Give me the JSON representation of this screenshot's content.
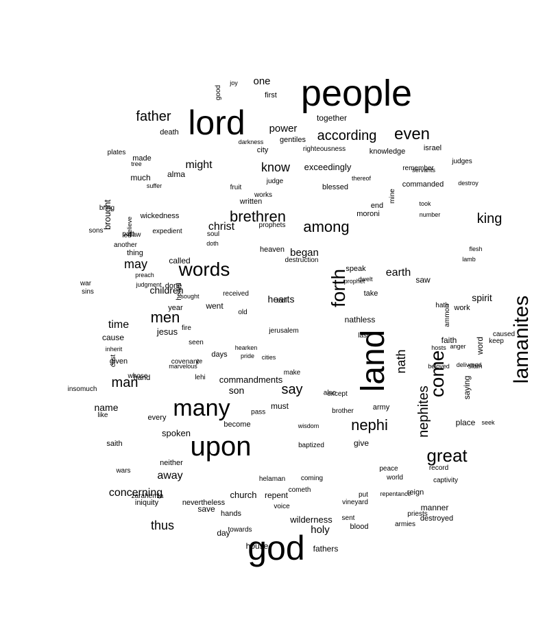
{
  "word_cloud": {
    "text_color": "#000000",
    "background_color": "#ffffff",
    "words": [
      {
        "text": "people",
        "size": 54
      },
      {
        "text": "lord",
        "size": 50
      },
      {
        "text": "god",
        "size": 50
      },
      {
        "text": "land",
        "size": 48
      },
      {
        "text": "upon",
        "size": 40
      },
      {
        "text": "many",
        "size": 34
      },
      {
        "text": "lamanites",
        "size": 30
      },
      {
        "text": "come",
        "size": 28
      },
      {
        "text": "forth",
        "size": 28
      },
      {
        "text": "words",
        "size": 28
      },
      {
        "text": "great",
        "size": 26
      },
      {
        "text": "even",
        "size": 24
      },
      {
        "text": "brethren",
        "size": 22
      },
      {
        "text": "among",
        "size": 22
      },
      {
        "text": "nephi",
        "size": 22
      },
      {
        "text": "men",
        "size": 22
      },
      {
        "text": "nephites",
        "size": 20
      },
      {
        "text": "man",
        "size": 20
      },
      {
        "text": "father",
        "size": 20
      },
      {
        "text": "according",
        "size": 20
      },
      {
        "text": "king",
        "size": 20
      },
      {
        "text": "say",
        "size": 20
      },
      {
        "text": "nath",
        "size": 18
      },
      {
        "text": "may",
        "size": 18
      },
      {
        "text": "thus",
        "size": 18
      },
      {
        "text": "know",
        "size": 18
      },
      {
        "text": "might",
        "size": 16
      },
      {
        "text": "away",
        "size": 16
      },
      {
        "text": "concerning",
        "size": 16
      },
      {
        "text": "christ",
        "size": 16
      },
      {
        "text": "earth",
        "size": 16
      },
      {
        "text": "time",
        "size": 16
      },
      {
        "text": "power",
        "size": 15
      },
      {
        "text": "one",
        "size": 15
      },
      {
        "text": "holy",
        "size": 15
      },
      {
        "text": "began",
        "size": 15
      },
      {
        "text": "spirit",
        "size": 14
      },
      {
        "text": "children",
        "size": 14
      },
      {
        "text": "son",
        "size": 14
      },
      {
        "text": "name",
        "size": 14
      },
      {
        "text": "hearts",
        "size": 14
      },
      {
        "text": "jesus",
        "size": 13
      },
      {
        "text": "spoken",
        "size": 13
      },
      {
        "text": "church",
        "size": 13
      },
      {
        "text": "wilderness",
        "size": 13
      },
      {
        "text": "brought",
        "size": 13
      },
      {
        "text": "exceedingly",
        "size": 13
      },
      {
        "text": "commandments",
        "size": 13
      },
      {
        "text": "saying",
        "size": 12
      },
      {
        "text": "word",
        "size": 12
      },
      {
        "text": "called",
        "size": 12
      },
      {
        "text": "must",
        "size": 12
      },
      {
        "text": "nathless",
        "size": 12
      },
      {
        "text": "place",
        "size": 12
      },
      {
        "text": "together",
        "size": 12
      },
      {
        "text": "faith",
        "size": 12
      },
      {
        "text": "alma",
        "size": 12
      },
      {
        "text": "much",
        "size": 12
      },
      {
        "text": "repent",
        "size": 12
      },
      {
        "text": "save",
        "size": 12
      },
      {
        "text": "give",
        "size": 12
      },
      {
        "text": "fathers",
        "size": 12
      },
      {
        "text": "cause",
        "size": 12
      },
      {
        "text": "day",
        "size": 12
      },
      {
        "text": "house",
        "size": 12
      },
      {
        "text": "manner",
        "size": 12
      },
      {
        "text": "saw",
        "size": 12
      },
      {
        "text": "went",
        "size": 12
      },
      {
        "text": "army",
        "size": 11
      },
      {
        "text": "death",
        "size": 11
      },
      {
        "text": "hands",
        "size": 11
      },
      {
        "text": "city",
        "size": 11
      },
      {
        "text": "work",
        "size": 11
      },
      {
        "text": "made",
        "size": 11
      },
      {
        "text": "saith",
        "size": 11
      },
      {
        "text": "knowledge",
        "size": 11
      },
      {
        "text": "israel",
        "size": 11
      },
      {
        "text": "moroni",
        "size": 11
      },
      {
        "text": "written",
        "size": 11
      },
      {
        "text": "take",
        "size": 11
      },
      {
        "text": "speak",
        "size": 11
      },
      {
        "text": "given",
        "size": 11
      },
      {
        "text": "become",
        "size": 11
      },
      {
        "text": "first",
        "size": 11
      },
      {
        "text": "blessed",
        "size": 11
      },
      {
        "text": "commanded",
        "size": 11
      },
      {
        "text": "year",
        "size": 11
      },
      {
        "text": "heaven",
        "size": 11
      },
      {
        "text": "wickedness",
        "size": 11
      },
      {
        "text": "every",
        "size": 11
      },
      {
        "text": "neither",
        "size": 11
      },
      {
        "text": "done",
        "size": 11
      },
      {
        "text": "gentiles",
        "size": 11
      },
      {
        "text": "end",
        "size": 11
      },
      {
        "text": "hand",
        "size": 11
      },
      {
        "text": "nevertheless",
        "size": 11
      },
      {
        "text": "blood",
        "size": 11
      },
      {
        "text": "destroyed",
        "size": 11
      },
      {
        "text": "reign",
        "size": 11
      },
      {
        "text": "iniquity",
        "size": 11
      },
      {
        "text": "days",
        "size": 11
      },
      {
        "text": "thing",
        "size": 11
      },
      {
        "text": "vineyard",
        "size": 10
      },
      {
        "text": "voice",
        "size": 10
      },
      {
        "text": "armies",
        "size": 10
      },
      {
        "text": "priests",
        "size": 10
      },
      {
        "text": "prophets",
        "size": 10
      },
      {
        "text": "destruction",
        "size": 10
      },
      {
        "text": "received",
        "size": 10
      },
      {
        "text": "record",
        "size": 10
      },
      {
        "text": "plates",
        "size": 10
      },
      {
        "text": "ammon",
        "size": 10
      },
      {
        "text": "law",
        "size": 10
      },
      {
        "text": "evil",
        "size": 10
      },
      {
        "text": "sons",
        "size": 10
      },
      {
        "text": "part",
        "size": 10
      },
      {
        "text": "works",
        "size": 10
      },
      {
        "text": "judge",
        "size": 10
      },
      {
        "text": "keep",
        "size": 10
      },
      {
        "text": "caused",
        "size": 10
      },
      {
        "text": "judges",
        "size": 10
      },
      {
        "text": "captivity",
        "size": 10
      },
      {
        "text": "good",
        "size": 10
      },
      {
        "text": "peace",
        "size": 10
      },
      {
        "text": "slain",
        "size": 10
      },
      {
        "text": "soul",
        "size": 10
      },
      {
        "text": "sent",
        "size": 10
      },
      {
        "text": "remember",
        "size": 10
      },
      {
        "text": "expedient",
        "size": 10
      },
      {
        "text": "another",
        "size": 10
      },
      {
        "text": "whose",
        "size": 10
      },
      {
        "text": "zarahemla",
        "size": 10
      },
      {
        "text": "wars",
        "size": 10
      },
      {
        "text": "helaman",
        "size": 10
      },
      {
        "text": "coming",
        "size": 10
      },
      {
        "text": "led",
        "size": 10
      },
      {
        "text": "make",
        "size": 10
      },
      {
        "text": "lehi",
        "size": 10
      },
      {
        "text": "fire",
        "size": 10
      },
      {
        "text": "seen",
        "size": 10
      },
      {
        "text": "mine",
        "size": 10
      },
      {
        "text": "except",
        "size": 10
      },
      {
        "text": "last",
        "size": 10
      },
      {
        "text": "cast",
        "size": 10
      },
      {
        "text": "righteousness",
        "size": 10
      },
      {
        "text": "towards",
        "size": 10
      },
      {
        "text": "jerusalem",
        "size": 10
      },
      {
        "text": "covenant",
        "size": 10
      },
      {
        "text": "insomuch",
        "size": 10
      },
      {
        "text": "like",
        "size": 10
      },
      {
        "text": "also",
        "size": 10
      },
      {
        "text": "heard",
        "size": 10
      },
      {
        "text": "fruit",
        "size": 10
      },
      {
        "text": "hath",
        "size": 10
      },
      {
        "text": "bring",
        "size": 10
      },
      {
        "text": "sins",
        "size": 10
      },
      {
        "text": "war",
        "size": 10
      },
      {
        "text": "world",
        "size": 10
      },
      {
        "text": "old",
        "size": 10
      },
      {
        "text": "cometh",
        "size": 10
      },
      {
        "text": "pass",
        "size": 10
      },
      {
        "text": "baptized",
        "size": 10
      },
      {
        "text": "brother",
        "size": 10
      },
      {
        "text": "put",
        "size": 10
      },
      {
        "text": "ye",
        "size": 9
      },
      {
        "text": "believe",
        "size": 9
      },
      {
        "text": "doth",
        "size": 9
      },
      {
        "text": "took",
        "size": 9
      },
      {
        "text": "thereof",
        "size": 9
      },
      {
        "text": "servants",
        "size": 9
      },
      {
        "text": "tree",
        "size": 9
      },
      {
        "text": "judgment",
        "size": 9
      },
      {
        "text": "hearken",
        "size": 9
      },
      {
        "text": "marvelous",
        "size": 9
      },
      {
        "text": "sought",
        "size": 9
      },
      {
        "text": "cities",
        "size": 9
      },
      {
        "text": "hosts",
        "size": 9
      },
      {
        "text": "anger",
        "size": 9
      },
      {
        "text": "preach",
        "size": 9
      },
      {
        "text": "joy",
        "size": 9
      },
      {
        "text": "suffer",
        "size": 9
      },
      {
        "text": "dwelt",
        "size": 9
      },
      {
        "text": "inherit",
        "size": 9
      },
      {
        "text": "flesh",
        "size": 9
      },
      {
        "text": "destroy",
        "size": 9
      },
      {
        "text": "prophet",
        "size": 9
      },
      {
        "text": "pride",
        "size": 9
      },
      {
        "text": "wisdom",
        "size": 9
      },
      {
        "text": "repentance",
        "size": 9
      },
      {
        "text": "seek",
        "size": 9
      },
      {
        "text": "darkness",
        "size": 9
      },
      {
        "text": "beloved",
        "size": 9
      },
      {
        "text": "delivered",
        "size": 9
      },
      {
        "text": "number",
        "size": 9
      },
      {
        "text": "lamb",
        "size": 9
      }
    ]
  }
}
